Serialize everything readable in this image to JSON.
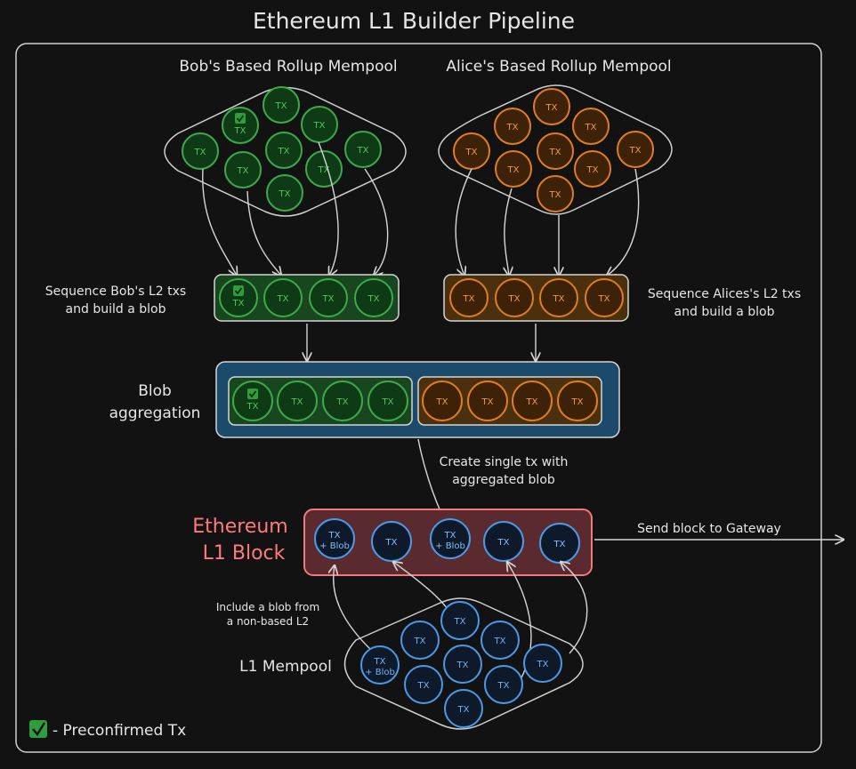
{
  "title": "Ethereum L1 Builder Pipeline",
  "tx_label": "TX",
  "tx_blob_label_1": "TX",
  "tx_blob_label_2": "+ Blob",
  "bob": {
    "mempool_title": "Bob's Based Rollup Mempool",
    "sequence_label_1": "Sequence Bob's L2 txs",
    "sequence_label_2": "and build a blob"
  },
  "alice": {
    "mempool_title": "Alice's Based Rollup Mempool",
    "sequence_label_1": "Sequence Alices's L2 txs",
    "sequence_label_2": "and build a blob"
  },
  "aggregation": {
    "label_1": "Blob",
    "label_2": "aggregation",
    "create_label_1": "Create single tx with",
    "create_label_2": "aggregated blob"
  },
  "block": {
    "label_1": "Ethereum",
    "label_2": "L1 Block",
    "send_label": "Send block to Gateway"
  },
  "l1_mempool": {
    "label": "L1 Mempool",
    "include_label_1": "Include a blob from",
    "include_label_2": "a non-based L2"
  },
  "legend": {
    "label": "- Preconfirmed Tx"
  },
  "colors": {
    "bob": "#3ea84c",
    "alice": "#e07d20",
    "l1": "#4a9ae8",
    "block_border": "#f07a7a",
    "aggregation_fill": "#1b4a6b"
  }
}
